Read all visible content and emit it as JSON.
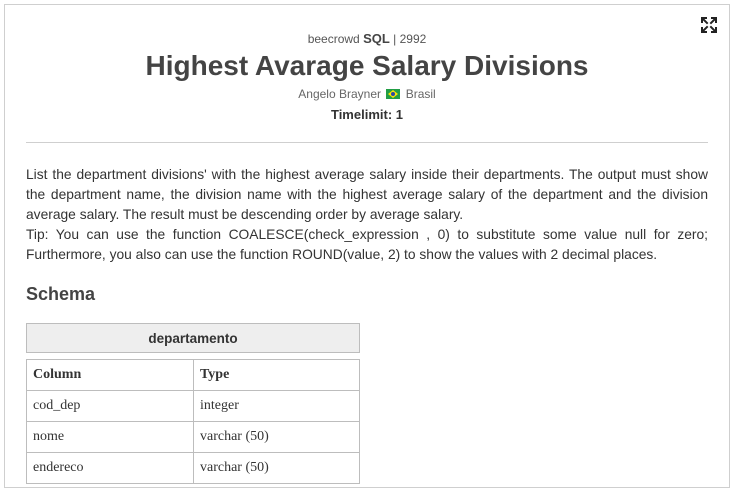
{
  "header": {
    "site": "beecrowd",
    "category": "SQL",
    "separator": "|",
    "problem_id": "2992",
    "title": "Highest Avarage Salary Divisions",
    "author": "Angelo Brayner",
    "country": "Brasil",
    "timelimit": "Timelimit: 1"
  },
  "description": {
    "paragraph1": "List the department divisions' with the highest average salary inside their departments. The output must show the department name, the division name with the highest average salary of the department and the division average salary. The result must be descending order by average salary.",
    "paragraph2": "Tip: You can use the function COALESCE(check_expression , 0) to substitute some value null for zero; Furthermore, you also can use the function ROUND(value, 2) to show the values with 2 decimal places."
  },
  "schema": {
    "title": "Schema",
    "table_name": "departamento",
    "columns_header": [
      "Column",
      "Type"
    ],
    "rows": [
      [
        "cod_dep",
        "integer"
      ],
      [
        "nome",
        "varchar (50)"
      ],
      [
        "endereco",
        "varchar (50)"
      ]
    ]
  },
  "icons": {
    "expand": "expand-icon",
    "flag": "brazil-flag-icon"
  }
}
